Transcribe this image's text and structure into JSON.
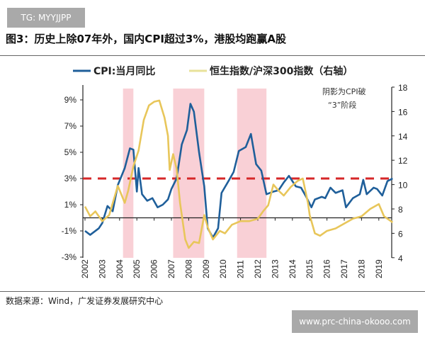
{
  "watermark_top": "TG: MYYJJPP",
  "title": "图3：历史上除07年外，国内CPI超过3%，港股均跑赢A股",
  "source": "数据来源：Wind，广发证券发展研究中心",
  "watermark_bottom": "www.prc-china-okooo.com",
  "chart_data": {
    "type": "line",
    "annotation": "阴影为CPI破\n“3”阶段",
    "annotation_lines": [
      "阴影为CPI破",
      "“3”阶段"
    ],
    "x_ticks": [
      "2002",
      "2003",
      "2004",
      "2005",
      "2006",
      "2007",
      "2008",
      "2009",
      "2010",
      "2011",
      "2012",
      "2013",
      "2014",
      "2015",
      "2016",
      "2017",
      "2018",
      "2019"
    ],
    "y_left": {
      "ticks": [
        "-3%",
        "-1%",
        "1%",
        "3%",
        "5%",
        "7%",
        "9%"
      ],
      "range": [
        -3,
        9
      ]
    },
    "y_right": {
      "ticks": [
        "4",
        "6",
        "8",
        "10",
        "12",
        "14",
        "16",
        "18"
      ],
      "range": [
        4,
        18
      ]
    },
    "reference_line": {
      "value": 3,
      "axis": "left",
      "style": "dashed",
      "color": "#d62728"
    },
    "shaded_periods": [
      [
        2004.2,
        2004.8
      ],
      [
        2007.1,
        2008.9
      ],
      [
        2010.8,
        2012.5
      ]
    ],
    "shade_color": "#f9d0d6",
    "grid": false,
    "legend": "top",
    "series": [
      {
        "name": "CPI:当月同比",
        "axis": "left",
        "color": "#1f5f9a",
        "points": [
          [
            2002.0,
            -1
          ],
          [
            2002.3,
            -1.3
          ],
          [
            2002.8,
            -0.8
          ],
          [
            2003.0,
            -0.4
          ],
          [
            2003.3,
            0.9
          ],
          [
            2003.6,
            0.5
          ],
          [
            2003.9,
            2.5
          ],
          [
            2004.3,
            3.8
          ],
          [
            2004.6,
            5.3
          ],
          [
            2004.8,
            5.2
          ],
          [
            2005.0,
            2.0
          ],
          [
            2005.1,
            3.8
          ],
          [
            2005.3,
            1.8
          ],
          [
            2005.6,
            1.3
          ],
          [
            2005.9,
            1.5
          ],
          [
            2006.2,
            0.8
          ],
          [
            2006.5,
            1.0
          ],
          [
            2006.8,
            1.4
          ],
          [
            2007.0,
            2.2
          ],
          [
            2007.3,
            3.0
          ],
          [
            2007.6,
            5.6
          ],
          [
            2007.9,
            6.7
          ],
          [
            2008.1,
            8.7
          ],
          [
            2008.3,
            8.1
          ],
          [
            2008.6,
            5.0
          ],
          [
            2008.9,
            2.4
          ],
          [
            2009.1,
            -0.8
          ],
          [
            2009.4,
            -1.5
          ],
          [
            2009.7,
            -0.8
          ],
          [
            2009.9,
            1.9
          ],
          [
            2010.3,
            2.8
          ],
          [
            2010.6,
            3.5
          ],
          [
            2010.9,
            5.1
          ],
          [
            2011.3,
            5.4
          ],
          [
            2011.6,
            6.4
          ],
          [
            2011.9,
            4.1
          ],
          [
            2012.2,
            3.6
          ],
          [
            2012.5,
            1.8
          ],
          [
            2012.9,
            2.0
          ],
          [
            2013.2,
            2.1
          ],
          [
            2013.5,
            2.7
          ],
          [
            2013.8,
            3.2
          ],
          [
            2014.2,
            2.4
          ],
          [
            2014.5,
            2.3
          ],
          [
            2014.8,
            1.6
          ],
          [
            2015.1,
            0.8
          ],
          [
            2015.3,
            1.4
          ],
          [
            2015.7,
            1.6
          ],
          [
            2015.9,
            1.5
          ],
          [
            2016.2,
            2.3
          ],
          [
            2016.5,
            1.9
          ],
          [
            2016.9,
            2.1
          ],
          [
            2017.1,
            0.8
          ],
          [
            2017.5,
            1.5
          ],
          [
            2017.9,
            1.8
          ],
          [
            2018.1,
            2.9
          ],
          [
            2018.3,
            1.8
          ],
          [
            2018.7,
            2.3
          ],
          [
            2018.9,
            2.2
          ],
          [
            2019.2,
            1.7
          ],
          [
            2019.5,
            2.8
          ],
          [
            2019.8,
            3.0
          ]
        ]
      },
      {
        "name": "恒生指数/沪深300指数（右轴）",
        "axis": "right",
        "color": "#e8c65a",
        "points": [
          [
            2002.0,
            8.2
          ],
          [
            2002.3,
            7.4
          ],
          [
            2002.6,
            7.8
          ],
          [
            2003.0,
            7.0
          ],
          [
            2003.4,
            7.5
          ],
          [
            2003.9,
            9.9
          ],
          [
            2004.3,
            8.5
          ],
          [
            2004.5,
            9.5
          ],
          [
            2004.8,
            11.5
          ],
          [
            2005.1,
            12.8
          ],
          [
            2005.4,
            15.3
          ],
          [
            2005.7,
            16.5
          ],
          [
            2006.0,
            16.8
          ],
          [
            2006.3,
            16.9
          ],
          [
            2006.6,
            15.5
          ],
          [
            2006.8,
            14.0
          ],
          [
            2006.9,
            11.2
          ],
          [
            2007.1,
            12.5
          ],
          [
            2007.3,
            11.3
          ],
          [
            2007.5,
            8.5
          ],
          [
            2007.8,
            5.5
          ],
          [
            2008.0,
            4.8
          ],
          [
            2008.3,
            5.3
          ],
          [
            2008.6,
            5.2
          ],
          [
            2008.9,
            7.5
          ],
          [
            2009.1,
            6.5
          ],
          [
            2009.4,
            5.5
          ],
          [
            2009.8,
            6.2
          ],
          [
            2010.1,
            6.0
          ],
          [
            2010.5,
            6.7
          ],
          [
            2011.0,
            7.0
          ],
          [
            2011.5,
            7.0
          ],
          [
            2012.0,
            7.2
          ],
          [
            2012.3,
            7.8
          ],
          [
            2012.6,
            8.3
          ],
          [
            2012.9,
            10.0
          ],
          [
            2013.2,
            9.5
          ],
          [
            2013.5,
            9.1
          ],
          [
            2013.9,
            9.8
          ],
          [
            2014.3,
            10.3
          ],
          [
            2014.6,
            10.5
          ],
          [
            2014.9,
            8.5
          ],
          [
            2015.0,
            7.5
          ],
          [
            2015.3,
            6.0
          ],
          [
            2015.6,
            5.8
          ],
          [
            2016.0,
            6.2
          ],
          [
            2016.5,
            6.4
          ],
          [
            2017.0,
            6.8
          ],
          [
            2017.5,
            7.2
          ],
          [
            2018.0,
            7.4
          ],
          [
            2018.5,
            8.0
          ],
          [
            2019.0,
            8.4
          ],
          [
            2019.3,
            7.4
          ],
          [
            2019.8,
            6.9
          ]
        ]
      }
    ]
  }
}
